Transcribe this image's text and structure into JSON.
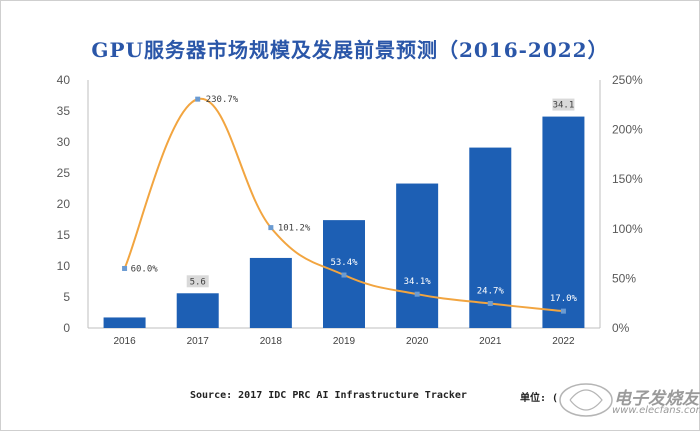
{
  "chart_data": {
    "type": "bar",
    "title": "GPU服务器市场规模及发展前景预测（2016-2022）",
    "categories": [
      "2016",
      "2017",
      "2018",
      "2019",
      "2020",
      "2021",
      "2022"
    ],
    "series": [
      {
        "values": [
          1.7,
          5.6,
          11.3,
          17.4,
          23.3,
          29.1,
          34.1
        ],
        "data_labels": [
          "",
          "5.6",
          "",
          "",
          "",
          "",
          "34.1"
        ],
        "axis": "left",
        "color": "#1d5fb4"
      },
      {
        "type": "line",
        "values": [
          60.0,
          230.7,
          101.2,
          53.4,
          34.1,
          24.7,
          17.0
        ],
        "data_labels": [
          "60.0%",
          "230.7%",
          "101.2%",
          "53.4%",
          "34.1%",
          "24.7%",
          "17.0%"
        ],
        "axis": "right",
        "color": "#f2a540",
        "marker_color": "#6b9bd2"
      }
    ],
    "y_left": {
      "ylim": [
        0,
        40
      ],
      "ticks": [
        "0",
        "5",
        "10",
        "15",
        "20",
        "25",
        "30",
        "35",
        "40"
      ]
    },
    "y_right": {
      "ylim": [
        0,
        250
      ],
      "ticks": [
        "0%",
        "50%",
        "100%",
        "150%",
        "200%",
        "250%"
      ]
    },
    "grid": false,
    "legend": "none"
  },
  "footer": {
    "source": "Source: 2017 IDC PRC AI Infrastructure Tracker",
    "unit": "单位: (",
    "watermark": "电子发烧友",
    "watermark_sub": "www.elecfans.com"
  }
}
